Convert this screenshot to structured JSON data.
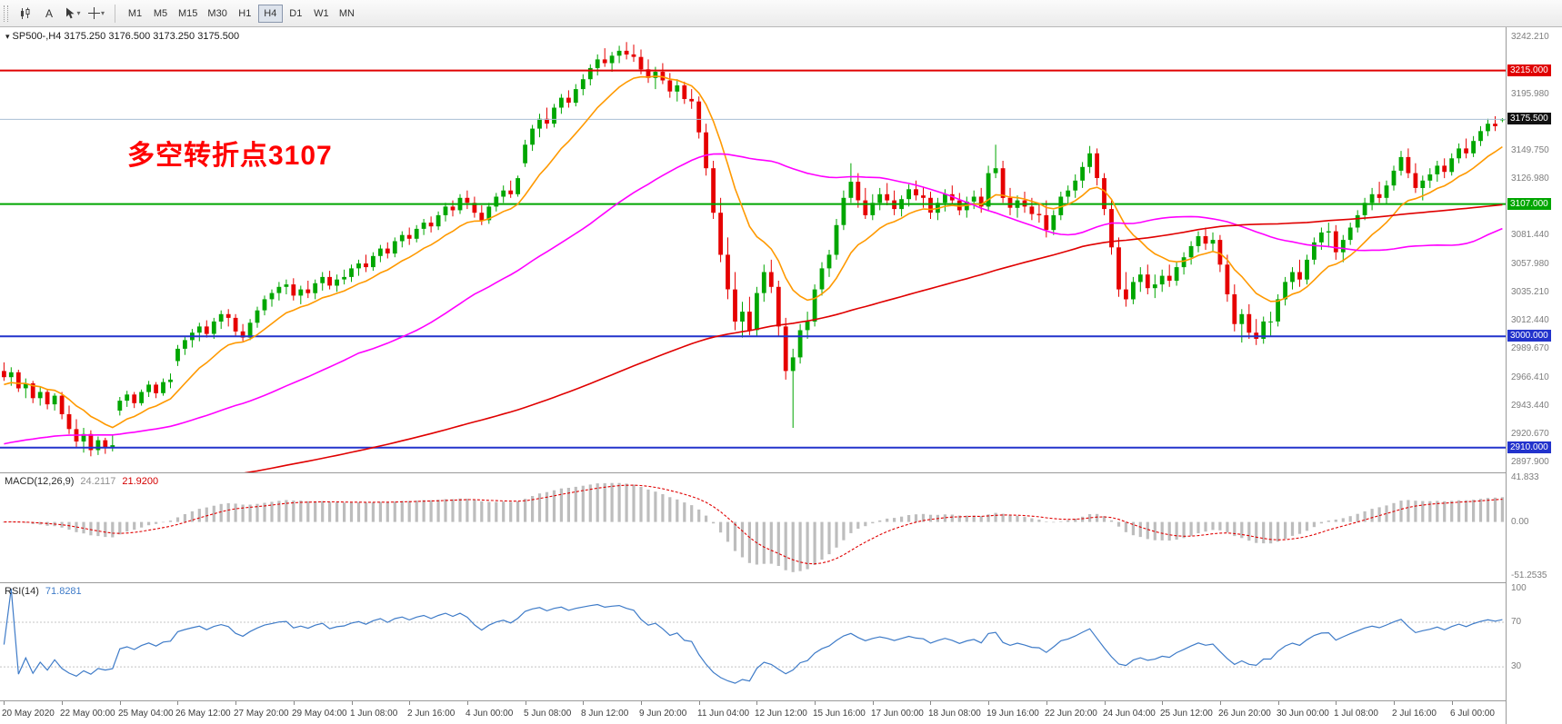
{
  "icons": {
    "chevron_down": "▾",
    "collapse": "▾"
  },
  "toolbar": {
    "text_tool_label": "A",
    "timeframes": [
      "M1",
      "M5",
      "M15",
      "M30",
      "H1",
      "H4",
      "D1",
      "W1",
      "MN"
    ],
    "active_timeframe": "H4"
  },
  "main_chart": {
    "title": "SP500-,H4 3175.250 3176.500 3173.250 3175.500",
    "annotation": {
      "text": "多空转折点3107",
      "color": "#FF0000"
    },
    "price_axis_labels": [
      "3242.210",
      "3195.980",
      "3149.750",
      "3126.980",
      "3081.440",
      "3057.980",
      "3035.210",
      "3012.440",
      "2989.670",
      "2966.410",
      "2943.440",
      "2920.670",
      "2897.900"
    ]
  },
  "chart_data": {
    "type": "candlestick",
    "symbol": "SP500-",
    "timeframe": "H4",
    "price_range": [
      2890,
      3250
    ],
    "up_color": "#00A600",
    "down_color": "#E60000",
    "bars_per_label": 8,
    "x_labels": [
      "20 May 2020",
      "22 May 00:00",
      "25 May 04:00",
      "26 May 12:00",
      "27 May 20:00",
      "29 May 04:00",
      "1 Jun 08:00",
      "2 Jun 16:00",
      "4 Jun 00:00",
      "5 Jun 08:00",
      "8 Jun 12:00",
      "9 Jun 20:00",
      "11 Jun 04:00",
      "12 Jun 12:00",
      "15 Jun 16:00",
      "17 Jun 00:00",
      "18 Jun 08:00",
      "19 Jun 16:00",
      "22 Jun 20:00",
      "24 Jun 04:00",
      "25 Jun 12:00",
      "26 Jun 20:00",
      "30 Jun 00:00",
      "1 Jul 08:00",
      "2 Jul 16:00",
      "6 Jul 00:00"
    ],
    "hlines": [
      {
        "price": 3215,
        "label": "3215.000",
        "color": "#E00000",
        "width": 2,
        "role": "resistance-line"
      },
      {
        "price": 3175.5,
        "label": "3175.500",
        "color": "#A9BFD4",
        "tag_color": "#111111",
        "width": 1,
        "role": "current-price-line"
      },
      {
        "price": 3107,
        "label": "3107.000",
        "color": "#00A600",
        "width": 2,
        "role": "pivot-line"
      },
      {
        "price": 3000,
        "label": "3000.000",
        "color": "#2233CC",
        "width": 2,
        "role": "support-line"
      },
      {
        "price": 2910,
        "label": "2910.000",
        "color": "#2233CC",
        "width": 2,
        "role": "support-line"
      }
    ],
    "overlays": [
      {
        "name": "ma-fast",
        "type": "ema",
        "period": 12,
        "seed": 2960,
        "color": "#FF9900"
      },
      {
        "name": "ma-medium",
        "type": "sma",
        "period": 50,
        "seed": 2912,
        "color": "#FF00FF"
      },
      {
        "name": "ma-slow",
        "type": "sma",
        "period": 150,
        "seed": 2868,
        "color": "#E00000"
      }
    ],
    "indicators": {
      "macd": {
        "label": "MACD(12,26,9)",
        "value_main": "24.2117",
        "value_signal": "21.9200",
        "fast": 12,
        "slow": 26,
        "signal": 9,
        "axis_labels": [
          "41.833",
          "0.00",
          "-51.2535"
        ],
        "range": [
          46,
          -57
        ],
        "histogram_color": "#BDBDBD",
        "signal_color": "#E00000"
      },
      "rsi": {
        "label": "RSI(14)",
        "value": "71.8281",
        "period": 14,
        "axis_labels": [
          "100",
          "70",
          "30"
        ],
        "levels": [
          70,
          30
        ],
        "range": [
          105,
          0
        ],
        "line_color": "#3E7BC8",
        "level_color": "#C4C4C4"
      }
    },
    "candles": [
      [
        2972,
        2979,
        2964,
        2967
      ],
      [
        2967,
        2975,
        2960,
        2971
      ],
      [
        2971,
        2973,
        2955,
        2958
      ],
      [
        2958,
        2966,
        2950,
        2962
      ],
      [
        2962,
        2964,
        2946,
        2950
      ],
      [
        2950,
        2959,
        2944,
        2955
      ],
      [
        2955,
        2957,
        2941,
        2945
      ],
      [
        2945,
        2954,
        2940,
        2952
      ],
      [
        2952,
        2955,
        2933,
        2937
      ],
      [
        2937,
        2944,
        2921,
        2925
      ],
      [
        2925,
        2933,
        2910,
        2915
      ],
      [
        2915,
        2926,
        2906,
        2921
      ],
      [
        2921,
        2924,
        2903,
        2908
      ],
      [
        2908,
        2919,
        2904,
        2916
      ],
      [
        2916,
        2918,
        2905,
        2910
      ],
      [
        2910,
        2920,
        2907,
        2912
      ],
      [
        2940,
        2951,
        2936,
        2948
      ],
      [
        2948,
        2956,
        2943,
        2953
      ],
      [
        2953,
        2955,
        2942,
        2946
      ],
      [
        2946,
        2957,
        2944,
        2955
      ],
      [
        2955,
        2964,
        2951,
        2961
      ],
      [
        2961,
        2963,
        2950,
        2954
      ],
      [
        2954,
        2966,
        2952,
        2963
      ],
      [
        2963,
        2970,
        2958,
        2965
      ],
      [
        2980,
        2993,
        2976,
        2990
      ],
      [
        2990,
        3000,
        2985,
        2997
      ],
      [
        2997,
        3006,
        2991,
        3003
      ],
      [
        3003,
        3011,
        2996,
        3008
      ],
      [
        3008,
        3013,
        2999,
        3002
      ],
      [
        3002,
        3015,
        2998,
        3012
      ],
      [
        3012,
        3021,
        3006,
        3018
      ],
      [
        3018,
        3022,
        3008,
        3015
      ],
      [
        3015,
        3018,
        3000,
        3004
      ],
      [
        3004,
        3010,
        2996,
        2999
      ],
      [
        2999,
        3014,
        2997,
        3011
      ],
      [
        3011,
        3024,
        3007,
        3021
      ],
      [
        3021,
        3033,
        3017,
        3030
      ],
      [
        3030,
        3038,
        3024,
        3035
      ],
      [
        3035,
        3044,
        3029,
        3040
      ],
      [
        3040,
        3046,
        3034,
        3042
      ],
      [
        3042,
        3047,
        3029,
        3033
      ],
      [
        3033,
        3041,
        3026,
        3038
      ],
      [
        3038,
        3045,
        3031,
        3035
      ],
      [
        3035,
        3046,
        3030,
        3043
      ],
      [
        3043,
        3052,
        3037,
        3048
      ],
      [
        3048,
        3053,
        3038,
        3041
      ],
      [
        3041,
        3050,
        3036,
        3046
      ],
      [
        3046,
        3054,
        3042,
        3048
      ],
      [
        3048,
        3058,
        3044,
        3055
      ],
      [
        3055,
        3062,
        3049,
        3059
      ],
      [
        3059,
        3066,
        3052,
        3056
      ],
      [
        3056,
        3068,
        3053,
        3065
      ],
      [
        3065,
        3074,
        3060,
        3071
      ],
      [
        3071,
        3076,
        3063,
        3067
      ],
      [
        3067,
        3080,
        3064,
        3077
      ],
      [
        3077,
        3085,
        3072,
        3082
      ],
      [
        3082,
        3088,
        3074,
        3079
      ],
      [
        3079,
        3090,
        3076,
        3087
      ],
      [
        3087,
        3095,
        3082,
        3092
      ],
      [
        3092,
        3097,
        3084,
        3089
      ],
      [
        3089,
        3101,
        3086,
        3098
      ],
      [
        3098,
        3108,
        3093,
        3105
      ],
      [
        3105,
        3110,
        3097,
        3102
      ],
      [
        3102,
        3115,
        3099,
        3112
      ],
      [
        3112,
        3118,
        3103,
        3108
      ],
      [
        3108,
        3113,
        3096,
        3100
      ],
      [
        3100,
        3106,
        3090,
        3094
      ],
      [
        3094,
        3108,
        3091,
        3105
      ],
      [
        3105,
        3116,
        3101,
        3113
      ],
      [
        3113,
        3122,
        3108,
        3118
      ],
      [
        3118,
        3126,
        3112,
        3115
      ],
      [
        3115,
        3130,
        3113,
        3128
      ],
      [
        3140,
        3159,
        3137,
        3155
      ],
      [
        3155,
        3171,
        3150,
        3168
      ],
      [
        3168,
        3180,
        3161,
        3176
      ],
      [
        3176,
        3185,
        3168,
        3172
      ],
      [
        3172,
        3188,
        3169,
        3185
      ],
      [
        3185,
        3196,
        3180,
        3193
      ],
      [
        3193,
        3199,
        3185,
        3189
      ],
      [
        3189,
        3204,
        3186,
        3200
      ],
      [
        3200,
        3212,
        3195,
        3208
      ],
      [
        3208,
        3220,
        3203,
        3217
      ],
      [
        3217,
        3228,
        3211,
        3224
      ],
      [
        3224,
        3233,
        3218,
        3221
      ],
      [
        3221,
        3230,
        3214,
        3227
      ],
      [
        3227,
        3235,
        3221,
        3231
      ],
      [
        3231,
        3238,
        3224,
        3228
      ],
      [
        3228,
        3236,
        3222,
        3226
      ],
      [
        3226,
        3232,
        3212,
        3216
      ],
      [
        3216,
        3224,
        3205,
        3209
      ],
      [
        3209,
        3218,
        3200,
        3214
      ],
      [
        3214,
        3221,
        3204,
        3207
      ],
      [
        3207,
        3213,
        3193,
        3198
      ],
      [
        3198,
        3208,
        3190,
        3203
      ],
      [
        3203,
        3206,
        3188,
        3192
      ],
      [
        3192,
        3200,
        3184,
        3190
      ],
      [
        3190,
        3194,
        3160,
        3165
      ],
      [
        3165,
        3172,
        3130,
        3136
      ],
      [
        3136,
        3142,
        3095,
        3100
      ],
      [
        3100,
        3112,
        3060,
        3066
      ],
      [
        3066,
        3080,
        3030,
        3038
      ],
      [
        3038,
        3052,
        3005,
        3012
      ],
      [
        3012,
        3028,
        2999,
        3020
      ],
      [
        3020,
        3032,
        3001,
        3005
      ],
      [
        3005,
        3040,
        3000,
        3035
      ],
      [
        3035,
        3058,
        3028,
        3052
      ],
      [
        3052,
        3062,
        3035,
        3040
      ],
      [
        3040,
        3045,
        3000,
        3008
      ],
      [
        3008,
        3015,
        2965,
        2972
      ],
      [
        2972,
        2990,
        2926,
        2983
      ],
      [
        2983,
        3010,
        2978,
        3005
      ],
      [
        3005,
        3020,
        2998,
        3012
      ],
      [
        3012,
        3042,
        3008,
        3038
      ],
      [
        3038,
        3060,
        3033,
        3055
      ],
      [
        3055,
        3070,
        3048,
        3066
      ],
      [
        3066,
        3095,
        3062,
        3090
      ],
      [
        3090,
        3118,
        3086,
        3112
      ],
      [
        3112,
        3140,
        3108,
        3125
      ],
      [
        3125,
        3132,
        3104,
        3110
      ],
      [
        3110,
        3120,
        3095,
        3098
      ],
      [
        3098,
        3115,
        3094,
        3108
      ],
      [
        3108,
        3120,
        3102,
        3115
      ],
      [
        3115,
        3124,
        3106,
        3110
      ],
      [
        3110,
        3118,
        3098,
        3103
      ],
      [
        3103,
        3114,
        3097,
        3111
      ],
      [
        3111,
        3123,
        3105,
        3119
      ],
      [
        3119,
        3126,
        3110,
        3114
      ],
      [
        3114,
        3121,
        3104,
        3112
      ],
      [
        3112,
        3117,
        3095,
        3100
      ],
      [
        3100,
        3112,
        3094,
        3108
      ],
      [
        3108,
        3119,
        3101,
        3115
      ],
      [
        3115,
        3122,
        3106,
        3110
      ],
      [
        3110,
        3116,
        3098,
        3102
      ],
      [
        3102,
        3113,
        3096,
        3109
      ],
      [
        3109,
        3118,
        3103,
        3113
      ],
      [
        3113,
        3120,
        3100,
        3105
      ],
      [
        3105,
        3138,
        3102,
        3132
      ],
      [
        3132,
        3155,
        3128,
        3136
      ],
      [
        3136,
        3142,
        3108,
        3112
      ],
      [
        3112,
        3120,
        3098,
        3104
      ],
      [
        3104,
        3114,
        3096,
        3110
      ],
      [
        3110,
        3117,
        3100,
        3105
      ],
      [
        3105,
        3112,
        3094,
        3099
      ],
      [
        3099,
        3108,
        3092,
        3098
      ],
      [
        3098,
        3110,
        3080,
        3086
      ],
      [
        3086,
        3102,
        3082,
        3098
      ],
      [
        3098,
        3117,
        3094,
        3113
      ],
      [
        3113,
        3122,
        3106,
        3118
      ],
      [
        3118,
        3131,
        3112,
        3126
      ],
      [
        3126,
        3141,
        3120,
        3137
      ],
      [
        3137,
        3154,
        3132,
        3148
      ],
      [
        3148,
        3152,
        3122,
        3128
      ],
      [
        3128,
        3132,
        3098,
        3103
      ],
      [
        3103,
        3110,
        3066,
        3072
      ],
      [
        3072,
        3080,
        3032,
        3038
      ],
      [
        3038,
        3052,
        3024,
        3030
      ],
      [
        3030,
        3048,
        3026,
        3044
      ],
      [
        3044,
        3056,
        3036,
        3050
      ],
      [
        3050,
        3058,
        3034,
        3039
      ],
      [
        3039,
        3050,
        3031,
        3042
      ],
      [
        3042,
        3054,
        3036,
        3049
      ],
      [
        3049,
        3058,
        3040,
        3045
      ],
      [
        3045,
        3060,
        3041,
        3056
      ],
      [
        3056,
        3068,
        3050,
        3064
      ],
      [
        3064,
        3077,
        3058,
        3073
      ],
      [
        3073,
        3085,
        3068,
        3081
      ],
      [
        3081,
        3088,
        3070,
        3075
      ],
      [
        3075,
        3084,
        3069,
        3078
      ],
      [
        3078,
        3082,
        3052,
        3058
      ],
      [
        3058,
        3066,
        3028,
        3034
      ],
      [
        3034,
        3042,
        3004,
        3010
      ],
      [
        3010,
        3022,
        2995,
        3018
      ],
      [
        3018,
        3026,
        2998,
        3003
      ],
      [
        3003,
        3014,
        2993,
        2998
      ],
      [
        2998,
        3016,
        2994,
        3012
      ],
      [
        3012,
        3020,
        3000,
        3012
      ],
      [
        3012,
        3034,
        3008,
        3030
      ],
      [
        3030,
        3048,
        3025,
        3044
      ],
      [
        3044,
        3056,
        3038,
        3052
      ],
      [
        3052,
        3062,
        3040,
        3046
      ],
      [
        3046,
        3066,
        3042,
        3062
      ],
      [
        3062,
        3080,
        3058,
        3076
      ],
      [
        3076,
        3088,
        3070,
        3084
      ],
      [
        3084,
        3092,
        3072,
        3085
      ],
      [
        3085,
        3090,
        3062,
        3068
      ],
      [
        3068,
        3082,
        3060,
        3078
      ],
      [
        3078,
        3092,
        3074,
        3088
      ],
      [
        3088,
        3102,
        3084,
        3098
      ],
      [
        3098,
        3112,
        3094,
        3108
      ],
      [
        3108,
        3120,
        3102,
        3115
      ],
      [
        3115,
        3125,
        3108,
        3112
      ],
      [
        3112,
        3126,
        3107,
        3122
      ],
      [
        3122,
        3138,
        3118,
        3134
      ],
      [
        3134,
        3150,
        3130,
        3145
      ],
      [
        3145,
        3152,
        3128,
        3132
      ],
      [
        3132,
        3140,
        3116,
        3120
      ],
      [
        3120,
        3130,
        3110,
        3126
      ],
      [
        3126,
        3136,
        3120,
        3131
      ],
      [
        3131,
        3142,
        3125,
        3138
      ],
      [
        3138,
        3144,
        3128,
        3133
      ],
      [
        3133,
        3148,
        3130,
        3144
      ],
      [
        3144,
        3156,
        3140,
        3152
      ],
      [
        3152,
        3160,
        3144,
        3148
      ],
      [
        3148,
        3162,
        3145,
        3158
      ],
      [
        3158,
        3170,
        3154,
        3166
      ],
      [
        3166,
        3176,
        3162,
        3172
      ],
      [
        3172,
        3178,
        3166,
        3170
      ],
      [
        3175.25,
        3176.5,
        3173.25,
        3175.5
      ]
    ]
  }
}
